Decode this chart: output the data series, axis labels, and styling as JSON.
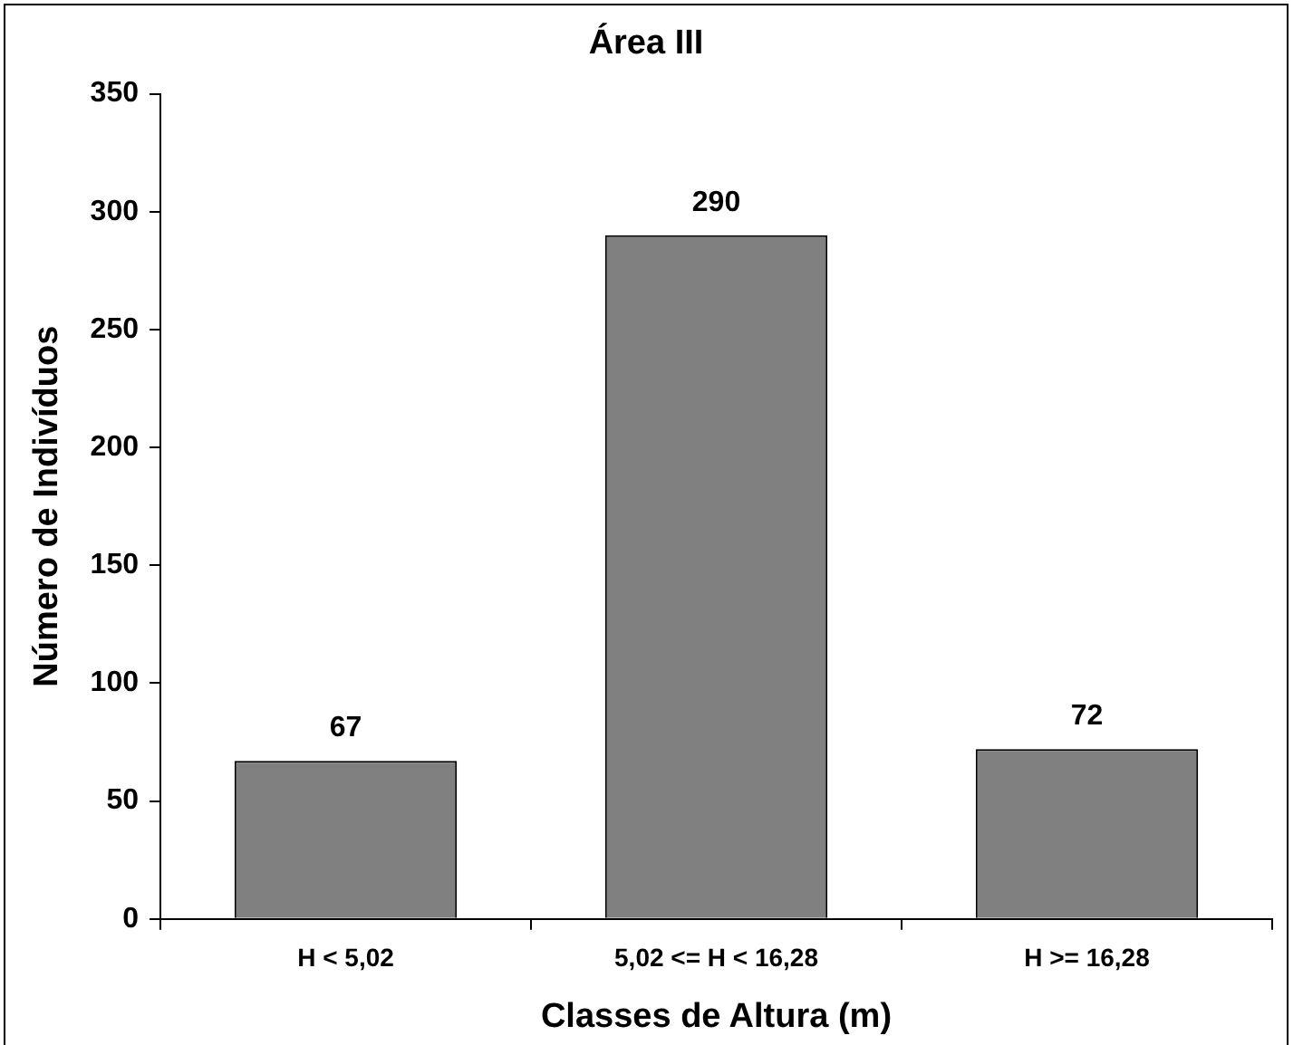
{
  "chart_data": {
    "type": "bar",
    "title": "Área III",
    "xlabel": "Classes de Altura (m)",
    "ylabel": "Número de Indivíduos",
    "categories": [
      "H < 5,02",
      "5,02 <= H < 16,28",
      "H >= 16,28"
    ],
    "values": [
      67,
      290,
      72
    ],
    "color": "#808080",
    "ylim": [
      0,
      350
    ],
    "yticks": [
      0,
      50,
      100,
      150,
      200,
      250,
      300,
      350
    ],
    "grid": false,
    "legend": false,
    "data_labels": true
  }
}
